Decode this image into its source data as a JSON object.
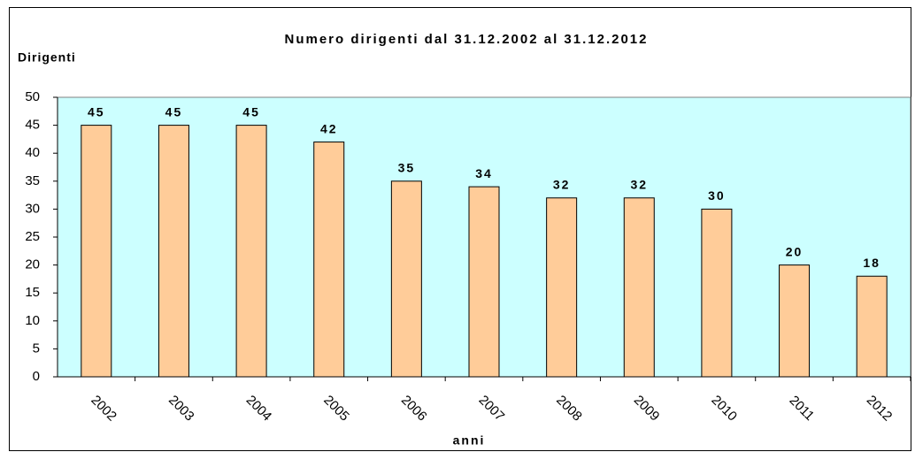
{
  "chart_data": {
    "type": "bar",
    "title": "Numero dirigenti dal 31.12.2002 al 31.12.2012",
    "y_label": "Dirigenti",
    "x_label": "anni",
    "categories": [
      "2002",
      "2003",
      "2004",
      "2005",
      "2006",
      "2007",
      "2008",
      "2009",
      "2010",
      "2011",
      "2012"
    ],
    "values": [
      45,
      45,
      45,
      42,
      35,
      34,
      32,
      32,
      30,
      20,
      18
    ],
    "color": "#ffcc99",
    "plot_background": "#ccffff",
    "ylim": [
      0,
      50
    ],
    "yticks": [
      0,
      5,
      10,
      15,
      20,
      25,
      30,
      35,
      40,
      45,
      50
    ],
    "grid": false
  }
}
